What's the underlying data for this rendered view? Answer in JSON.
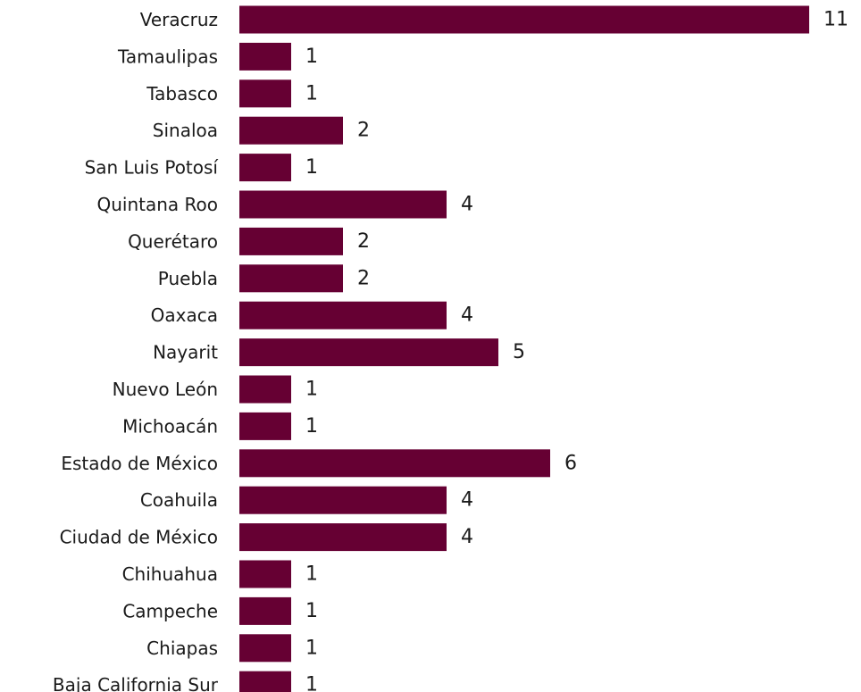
{
  "chart_data": {
    "type": "bar",
    "orientation": "horizontal",
    "categories": [
      "Veracruz",
      "Tamaulipas",
      "Tabasco",
      "Sinaloa",
      "San Luis Potosí",
      "Quintana Roo",
      "Querétaro",
      "Puebla",
      "Oaxaca",
      "Nayarit",
      "Nuevo León",
      "Michoacán",
      "Estado de México",
      "Coahuila",
      "Ciudad de México",
      "Chihuahua",
      "Campeche",
      "Chiapas",
      "Baja California Sur"
    ],
    "values": [
      11,
      1,
      1,
      2,
      1,
      4,
      2,
      2,
      4,
      5,
      1,
      1,
      6,
      4,
      4,
      1,
      1,
      1,
      1
    ],
    "title": "",
    "xlabel": "",
    "ylabel": "",
    "grid": false,
    "legend": "none",
    "data_labels": true,
    "bar_color": "#660033"
  }
}
